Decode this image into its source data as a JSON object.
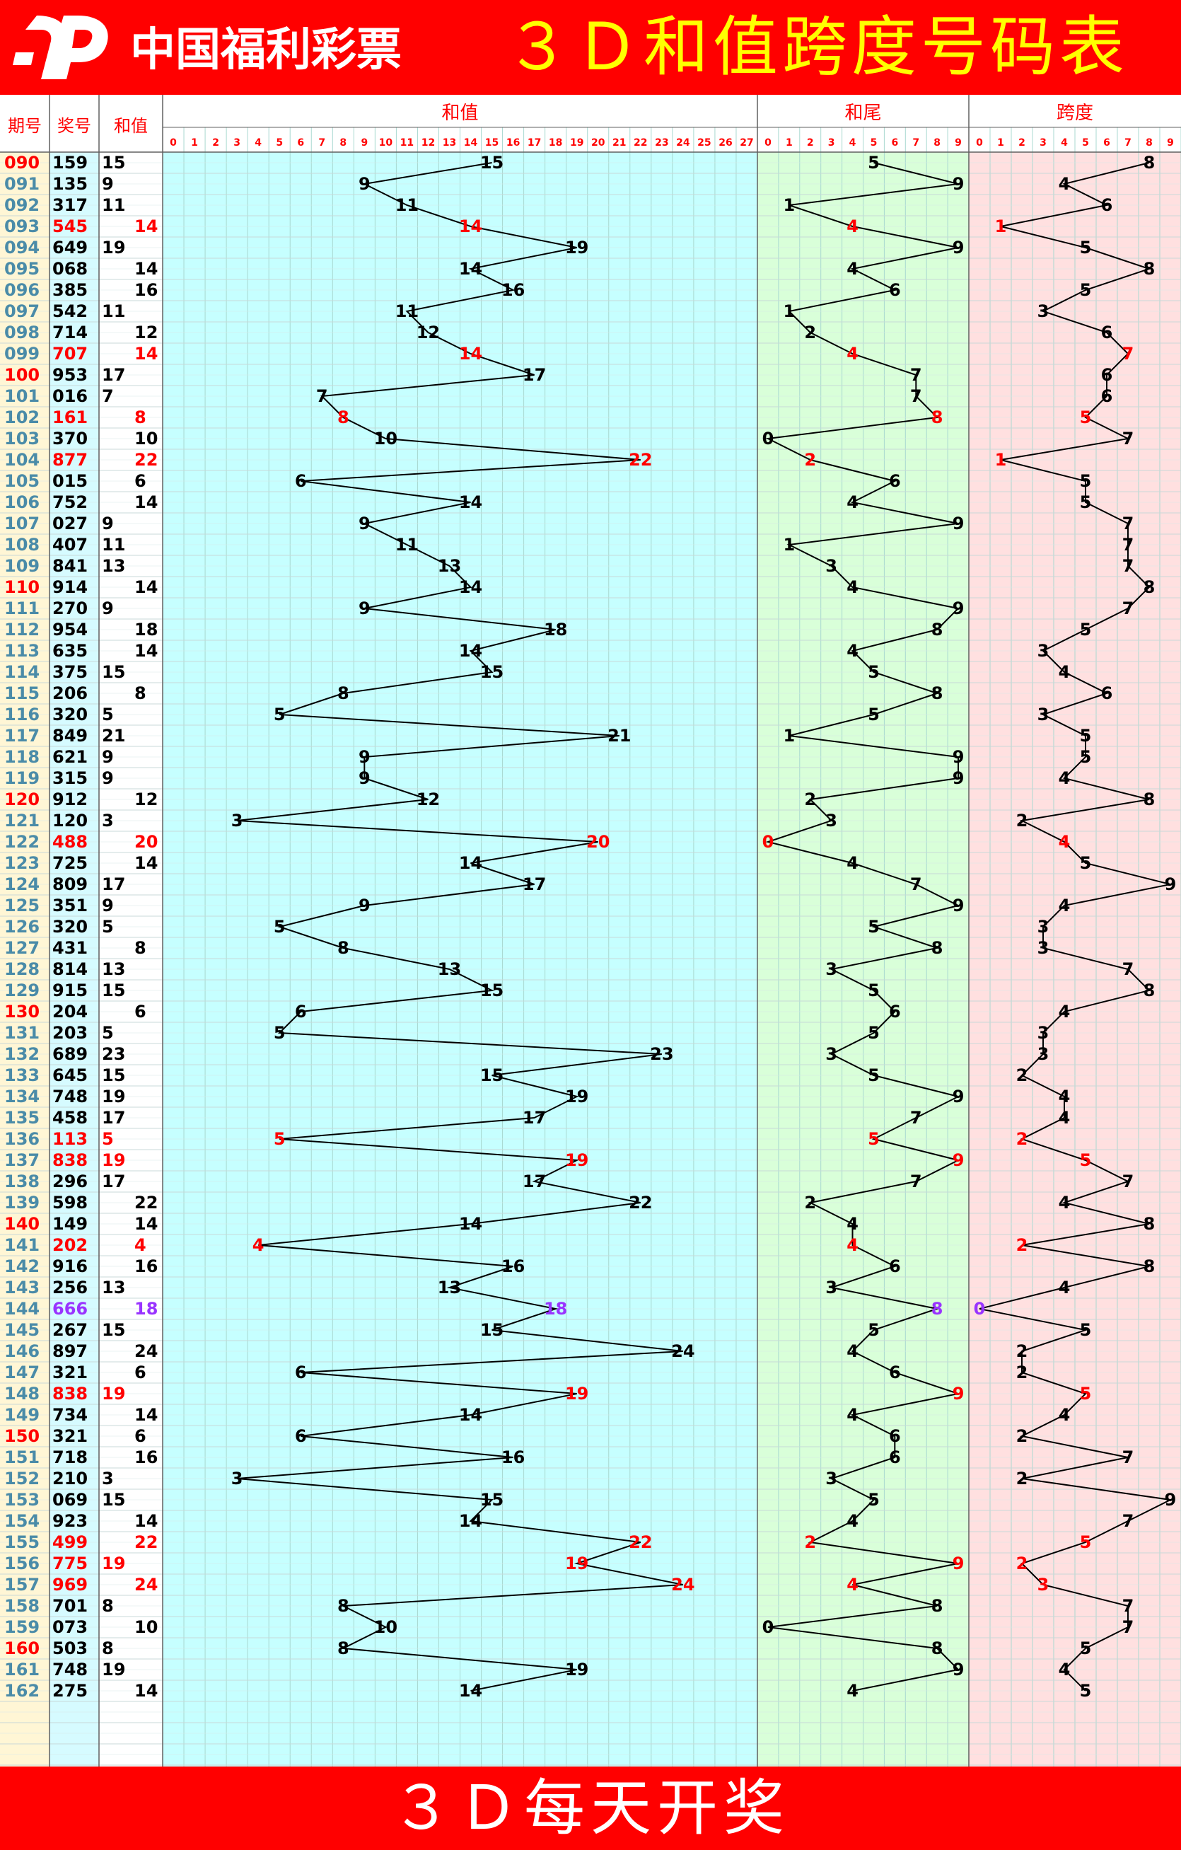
{
  "header": {
    "logo_text": "中国福利彩票",
    "title": "３Ｄ和值跨度号码表"
  },
  "footer": {
    "text": "３Ｄ每天开奖"
  },
  "colors": {
    "header_bg": "#ff0000",
    "title_color": "#ffff00",
    "sum_zone_bg": "#c6ffff",
    "tail_zone_bg": "#d9ffd9",
    "span_zone_bg": "#ffe0e0",
    "period_col_bg": "#fff6d5",
    "number_col_bg": "#d6fbff",
    "highlight_red": "#ff0000",
    "highlight_purple": "#9933ff",
    "period_blue": "#4a8ba8",
    "line_color": "#000000"
  },
  "chart_data": {
    "type": "line",
    "title": "３Ｄ和值跨度号码表",
    "columns": {
      "period": "期号",
      "number": "奖号",
      "sum": "和值"
    },
    "zones": [
      {
        "name": "和值",
        "min": 0,
        "max": 27,
        "ticks": [
          "0",
          "1",
          "2",
          "3",
          "4",
          "5",
          "6",
          "7",
          "8",
          "9",
          "10",
          "11",
          "12",
          "13",
          "14",
          "15",
          "16",
          "17",
          "18",
          "19",
          "20",
          "21",
          "22",
          "23",
          "24",
          "25",
          "26",
          "27"
        ]
      },
      {
        "name": "和尾",
        "min": 0,
        "max": 9,
        "ticks": [
          "0",
          "1",
          "2",
          "3",
          "4",
          "5",
          "6",
          "7",
          "8",
          "9"
        ]
      },
      {
        "name": "跨度",
        "min": 0,
        "max": 9,
        "ticks": [
          "0",
          "1",
          "2",
          "3",
          "4",
          "5",
          "6",
          "7",
          "8",
          "9"
        ]
      }
    ],
    "periods": [
      "090",
      "091",
      "092",
      "093",
      "094",
      "095",
      "096",
      "097",
      "098",
      "099",
      "100",
      "101",
      "102",
      "103",
      "104",
      "105",
      "106",
      "107",
      "108",
      "109",
      "110",
      "111",
      "112",
      "113",
      "114",
      "115",
      "116",
      "117",
      "118",
      "119",
      "120",
      "121",
      "122",
      "123",
      "124",
      "125",
      "126",
      "127",
      "128",
      "129",
      "130",
      "131",
      "132",
      "133",
      "134",
      "135",
      "136",
      "137",
      "138",
      "139",
      "140",
      "141",
      "142",
      "143",
      "144",
      "145",
      "146",
      "147",
      "148",
      "149",
      "150",
      "151",
      "152",
      "153",
      "154",
      "155",
      "156",
      "157",
      "158",
      "159",
      "160",
      "161",
      "162"
    ],
    "numbers": [
      "159",
      "135",
      "317",
      "545",
      "649",
      "068",
      "385",
      "542",
      "714",
      "707",
      "953",
      "016",
      "161",
      "370",
      "877",
      "015",
      "752",
      "027",
      "407",
      "841",
      "914",
      "270",
      "954",
      "635",
      "375",
      "206",
      "320",
      "849",
      "621",
      "315",
      "912",
      "120",
      "488",
      "725",
      "809",
      "351",
      "320",
      "431",
      "814",
      "915",
      "204",
      "203",
      "689",
      "645",
      "748",
      "458",
      "113",
      "838",
      "296",
      "598",
      "149",
      "202",
      "916",
      "256",
      "666",
      "267",
      "897",
      "321",
      "838",
      "734",
      "321",
      "718",
      "210",
      "069",
      "923",
      "499",
      "775",
      "969",
      "701",
      "073",
      "503",
      "748",
      "275"
    ],
    "series": [
      {
        "name": "和值",
        "values": [
          15,
          9,
          11,
          14,
          19,
          14,
          16,
          11,
          12,
          14,
          17,
          7,
          8,
          10,
          22,
          6,
          14,
          9,
          11,
          13,
          14,
          9,
          18,
          14,
          15,
          8,
          5,
          21,
          9,
          9,
          12,
          3,
          20,
          14,
          17,
          9,
          5,
          8,
          13,
          15,
          6,
          5,
          23,
          15,
          19,
          17,
          5,
          19,
          17,
          22,
          14,
          4,
          16,
          13,
          18,
          15,
          24,
          6,
          19,
          14,
          6,
          16,
          3,
          15,
          14,
          22,
          19,
          24,
          8,
          10,
          8,
          19,
          14
        ]
      },
      {
        "name": "和尾",
        "values": [
          5,
          9,
          1,
          4,
          9,
          4,
          6,
          1,
          2,
          4,
          7,
          7,
          8,
          0,
          2,
          6,
          4,
          9,
          1,
          3,
          4,
          9,
          8,
          4,
          5,
          8,
          5,
          1,
          9,
          9,
          2,
          3,
          0,
          4,
          7,
          9,
          5,
          8,
          3,
          5,
          6,
          5,
          3,
          5,
          9,
          7,
          5,
          9,
          7,
          2,
          4,
          4,
          6,
          3,
          8,
          5,
          4,
          6,
          9,
          4,
          6,
          6,
          3,
          5,
          4,
          2,
          9,
          4,
          8,
          0,
          8,
          9,
          4
        ]
      },
      {
        "name": "跨度",
        "values": [
          8,
          4,
          6,
          1,
          5,
          8,
          5,
          3,
          6,
          7,
          6,
          6,
          5,
          7,
          1,
          5,
          5,
          7,
          7,
          7,
          8,
          7,
          5,
          3,
          4,
          6,
          3,
          5,
          5,
          4,
          8,
          2,
          4,
          5,
          9,
          4,
          3,
          3,
          7,
          8,
          4,
          3,
          3,
          2,
          4,
          4,
          2,
          5,
          7,
          4,
          8,
          2,
          8,
          4,
          0,
          5,
          2,
          2,
          5,
          4,
          2,
          7,
          2,
          9,
          7,
          5,
          2,
          3,
          7,
          7,
          5,
          4,
          5
        ]
      }
    ],
    "period_highlight": [
      "red",
      "black",
      "black",
      "black",
      "black",
      "black",
      "black",
      "black",
      "black",
      "black",
      "red",
      "black",
      "black",
      "black",
      "black",
      "black",
      "black",
      "black",
      "black",
      "black",
      "red",
      "black",
      "black",
      "black",
      "black",
      "black",
      "black",
      "black",
      "black",
      "black",
      "red",
      "black",
      "black",
      "black",
      "black",
      "black",
      "black",
      "black",
      "black",
      "black",
      "red",
      "black",
      "black",
      "black",
      "black",
      "black",
      "black",
      "black",
      "black",
      "black",
      "red",
      "black",
      "black",
      "black",
      "black",
      "black",
      "black",
      "black",
      "black",
      "black",
      "red",
      "black",
      "black",
      "black",
      "black",
      "black",
      "black",
      "black",
      "black",
      "black",
      "red",
      "black",
      "black"
    ],
    "row_highlight": [
      "none",
      "none",
      "none",
      "red",
      "none",
      "none",
      "none",
      "none",
      "none",
      "red",
      "none",
      "none",
      "red",
      "none",
      "red",
      "none",
      "none",
      "none",
      "none",
      "none",
      "none",
      "none",
      "none",
      "none",
      "none",
      "none",
      "none",
      "none",
      "none",
      "none",
      "none",
      "none",
      "red",
      "none",
      "none",
      "none",
      "none",
      "none",
      "none",
      "none",
      "none",
      "none",
      "none",
      "none",
      "none",
      "none",
      "red",
      "red",
      "none",
      "none",
      "none",
      "red",
      "none",
      "none",
      "purple",
      "none",
      "none",
      "none",
      "red",
      "none",
      "none",
      "none",
      "none",
      "none",
      "none",
      "red",
      "red",
      "red",
      "none",
      "none",
      "none",
      "none",
      "none"
    ],
    "sum_indent": [
      0,
      0,
      0,
      1,
      0,
      1,
      1,
      0,
      1,
      1,
      0,
      0,
      1,
      1,
      1,
      1,
      1,
      0,
      0,
      0,
      1,
      0,
      1,
      1,
      0,
      1,
      0,
      0,
      0,
      0,
      1,
      0,
      1,
      1,
      0,
      0,
      0,
      1,
      0,
      0,
      1,
      0,
      0,
      0,
      0,
      0,
      0,
      0,
      0,
      1,
      1,
      1,
      1,
      0,
      1,
      0,
      1,
      1,
      0,
      1,
      1,
      1,
      0,
      0,
      1,
      1,
      0,
      1,
      0,
      1,
      0,
      0,
      1
    ],
    "grid": true,
    "blank_rows": 3
  }
}
